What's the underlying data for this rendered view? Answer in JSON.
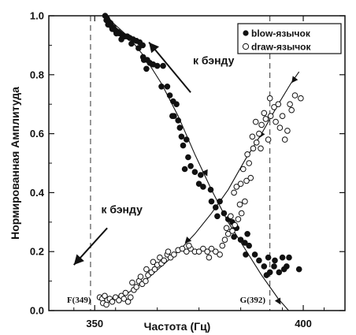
{
  "chart_data": {
    "type": "scatter",
    "xlabel": "Частота (Гц)",
    "ylabel": "Нормированная Амплитуда",
    "xlim": [
      339,
      410
    ],
    "ylim": [
      0,
      1.0
    ],
    "x_ticks": [
      350,
      400
    ],
    "y_ticks": [
      0.0,
      0.2,
      0.4,
      0.6,
      0.8,
      1.0
    ],
    "y_tick_labels": [
      "0.0",
      "0.2",
      "0.4",
      "0.6",
      "0.8",
      "1.0"
    ],
    "legend_position": "top-right",
    "series": [
      {
        "name": "blow-язычок",
        "marker": "filled-circle",
        "points": [
          [
            352.5,
            1.0
          ],
          [
            353.0,
            0.99
          ],
          [
            352.8,
            0.985
          ],
          [
            353.4,
            0.98
          ],
          [
            353.8,
            0.975
          ],
          [
            353.2,
            0.97
          ],
          [
            354.0,
            0.965
          ],
          [
            354.5,
            0.96
          ],
          [
            354.2,
            0.955
          ],
          [
            355.0,
            0.95
          ],
          [
            355.6,
            0.945
          ],
          [
            355.2,
            0.94
          ],
          [
            356.0,
            0.94
          ],
          [
            356.6,
            0.935
          ],
          [
            357.2,
            0.93
          ],
          [
            357.8,
            0.93
          ],
          [
            358.4,
            0.925
          ],
          [
            356.4,
            0.92
          ],
          [
            359.2,
            0.92
          ],
          [
            360.0,
            0.915
          ],
          [
            360.8,
            0.91
          ],
          [
            361.5,
            0.9
          ],
          [
            358.8,
            0.905
          ],
          [
            360.5,
            0.89
          ],
          [
            361.6,
            0.86
          ],
          [
            361.8,
            0.85
          ],
          [
            362.6,
            0.85
          ],
          [
            363.2,
            0.84
          ],
          [
            364.0,
            0.835
          ],
          [
            365.0,
            0.83
          ],
          [
            366.4,
            0.83
          ],
          [
            366.0,
            0.76
          ],
          [
            367.4,
            0.76
          ],
          [
            368.0,
            0.73
          ],
          [
            368.8,
            0.71
          ],
          [
            369.6,
            0.7
          ],
          [
            369.0,
            0.66
          ],
          [
            370.0,
            0.645
          ],
          [
            370.4,
            0.62
          ],
          [
            370.8,
            0.59
          ],
          [
            372.0,
            0.58
          ],
          [
            371.2,
            0.56
          ],
          [
            371.6,
            0.48
          ],
          [
            373.0,
            0.49
          ],
          [
            374.0,
            0.47
          ],
          [
            375.4,
            0.46
          ],
          [
            375.0,
            0.43
          ],
          [
            376.0,
            0.42
          ],
          [
            378.0,
            0.37
          ],
          [
            379.0,
            0.35
          ],
          [
            380.0,
            0.37
          ],
          [
            379.4,
            0.32
          ],
          [
            381.0,
            0.33
          ],
          [
            382.0,
            0.31
          ],
          [
            383.0,
            0.3
          ],
          [
            384.0,
            0.28
          ],
          [
            383.4,
            0.25
          ],
          [
            385.0,
            0.24
          ],
          [
            386.0,
            0.23
          ],
          [
            387.0,
            0.22
          ],
          [
            386.2,
            0.19
          ],
          [
            388.4,
            0.19
          ],
          [
            389.4,
            0.17
          ],
          [
            391.6,
            0.18
          ],
          [
            393.2,
            0.17
          ],
          [
            395.0,
            0.18
          ],
          [
            396.6,
            0.18
          ],
          [
            396.0,
            0.15
          ],
          [
            395.4,
            0.14
          ],
          [
            394.2,
            0.13
          ],
          [
            392.0,
            0.13
          ],
          [
            393.0,
            0.15
          ],
          [
            390.6,
            0.15
          ],
          [
            391.2,
            0.12
          ],
          [
            399.0,
            0.14
          ],
          [
            386.6,
            0.26
          ],
          [
            377.8,
            0.41
          ],
          [
            372.4,
            0.52
          ],
          [
            368.6,
            0.66
          ],
          [
            362.4,
            0.82
          ]
        ]
      },
      {
        "name": "draw-язычок",
        "marker": "open-circle",
        "points": [
          [
            351.2,
            0.045
          ],
          [
            351.8,
            0.04
          ],
          [
            352.4,
            0.05
          ],
          [
            353.0,
            0.035
          ],
          [
            353.6,
            0.04
          ],
          [
            354.2,
            0.03
          ],
          [
            352.0,
            0.025
          ],
          [
            352.8,
            0.02
          ],
          [
            355.0,
            0.045
          ],
          [
            355.8,
            0.035
          ],
          [
            356.4,
            0.05
          ],
          [
            357.0,
            0.04
          ],
          [
            358.0,
            0.03
          ],
          [
            358.6,
            0.045
          ],
          [
            357.4,
            0.06
          ],
          [
            359.4,
            0.07
          ],
          [
            360.0,
            0.08
          ],
          [
            359.0,
            0.095
          ],
          [
            360.6,
            0.1
          ],
          [
            361.4,
            0.09
          ],
          [
            362.2,
            0.1
          ],
          [
            361.0,
            0.115
          ],
          [
            362.8,
            0.12
          ],
          [
            363.6,
            0.13
          ],
          [
            362.4,
            0.14
          ],
          [
            364.4,
            0.14
          ],
          [
            365.0,
            0.155
          ],
          [
            364.0,
            0.165
          ],
          [
            366.0,
            0.16
          ],
          [
            366.6,
            0.17
          ],
          [
            365.6,
            0.18
          ],
          [
            367.4,
            0.19
          ],
          [
            368.2,
            0.18
          ],
          [
            369.0,
            0.19
          ],
          [
            367.6,
            0.2
          ],
          [
            370.0,
            0.205
          ],
          [
            371.0,
            0.21
          ],
          [
            372.0,
            0.2
          ],
          [
            373.0,
            0.21
          ],
          [
            374.0,
            0.2
          ],
          [
            372.6,
            0.22
          ],
          [
            375.0,
            0.2
          ],
          [
            376.0,
            0.21
          ],
          [
            377.0,
            0.2
          ],
          [
            378.0,
            0.21
          ],
          [
            377.4,
            0.18
          ],
          [
            379.0,
            0.2
          ],
          [
            380.0,
            0.19
          ],
          [
            380.6,
            0.22
          ],
          [
            381.2,
            0.24
          ],
          [
            382.0,
            0.26
          ],
          [
            381.6,
            0.28
          ],
          [
            383.0,
            0.27
          ],
          [
            383.6,
            0.29
          ],
          [
            382.6,
            0.32
          ],
          [
            384.4,
            0.31
          ],
          [
            385.2,
            0.33
          ],
          [
            384.8,
            0.36
          ],
          [
            386.0,
            0.37
          ],
          [
            383.4,
            0.4
          ],
          [
            384.0,
            0.42
          ],
          [
            385.0,
            0.43
          ],
          [
            386.4,
            0.44
          ],
          [
            387.4,
            0.45
          ],
          [
            385.6,
            0.48
          ],
          [
            387.0,
            0.5
          ],
          [
            386.6,
            0.53
          ],
          [
            388.0,
            0.55
          ],
          [
            388.8,
            0.57
          ],
          [
            387.8,
            0.59
          ],
          [
            389.4,
            0.6
          ],
          [
            390.0,
            0.63
          ],
          [
            388.6,
            0.64
          ],
          [
            391.0,
            0.65
          ],
          [
            390.6,
            0.67
          ],
          [
            392.2,
            0.66
          ],
          [
            393.4,
            0.64
          ],
          [
            394.4,
            0.62
          ],
          [
            395.6,
            0.58
          ],
          [
            396.2,
            0.61
          ],
          [
            395.0,
            0.66
          ],
          [
            394.0,
            0.7
          ],
          [
            393.0,
            0.69
          ],
          [
            392.0,
            0.72
          ],
          [
            396.8,
            0.7
          ],
          [
            398.0,
            0.73
          ],
          [
            399.4,
            0.72
          ],
          [
            397.2,
            0.68
          ],
          [
            391.6,
            0.58
          ],
          [
            389.8,
            0.55
          ]
        ]
      }
    ],
    "curves": [
      {
        "id": "blow-curve",
        "points": [
          [
            352.5,
            1.0
          ],
          [
            358,
            0.93
          ],
          [
            362,
            0.86
          ],
          [
            366,
            0.77
          ],
          [
            370,
            0.66
          ],
          [
            374,
            0.53
          ],
          [
            378,
            0.41
          ],
          [
            382,
            0.3
          ],
          [
            386,
            0.21
          ],
          [
            390,
            0.12
          ],
          [
            394,
            0.04
          ],
          [
            396.5,
            0.0
          ]
        ]
      },
      {
        "id": "draw-curve",
        "points": [
          [
            354,
            0.04
          ],
          [
            358,
            0.06
          ],
          [
            362,
            0.1
          ],
          [
            366,
            0.15
          ],
          [
            370,
            0.2
          ],
          [
            374,
            0.26
          ],
          [
            378,
            0.33
          ],
          [
            382,
            0.41
          ],
          [
            386,
            0.51
          ],
          [
            390,
            0.6
          ],
          [
            394,
            0.7
          ],
          [
            397,
            0.77
          ],
          [
            399,
            0.81
          ]
        ]
      }
    ],
    "reference_lines": [
      {
        "x": 349,
        "label": "F(349)"
      },
      {
        "x": 392,
        "label": "G(392)"
      }
    ],
    "annotations": [
      {
        "text": "к бэнду",
        "x": 378.5,
        "y": 0.835
      },
      {
        "text": "к бэнду",
        "x": 356.5,
        "y": 0.33
      }
    ],
    "annotation_arrows": [
      {
        "from": [
          373,
          0.74
        ],
        "to": [
          363,
          0.91
        ]
      },
      {
        "from": [
          353,
          0.28
        ],
        "to": [
          345,
          0.155
        ]
      }
    ],
    "curve_arrows": [
      {
        "curve": "blow-curve",
        "at": [
          375.6,
          0.5
        ],
        "to": [
          377,
          0.455
        ]
      },
      {
        "curve": "blow-curve",
        "at": [
          382,
          0.3
        ],
        "to": [
          383.6,
          0.262
        ]
      },
      {
        "curve": "blow-curve",
        "at": [
          393.2,
          0.055
        ],
        "to": [
          394.6,
          0.02
        ]
      },
      {
        "curve": "draw-curve",
        "at": [
          398.4,
          0.795
        ],
        "to": [
          397.2,
          0.772
        ]
      },
      {
        "curve": "draw-curve",
        "at": [
          390.6,
          0.615
        ],
        "to": [
          389.4,
          0.585
        ]
      },
      {
        "curve": "draw-curve",
        "at": [
          373.4,
          0.255
        ],
        "to": [
          371.6,
          0.228
        ]
      }
    ]
  }
}
